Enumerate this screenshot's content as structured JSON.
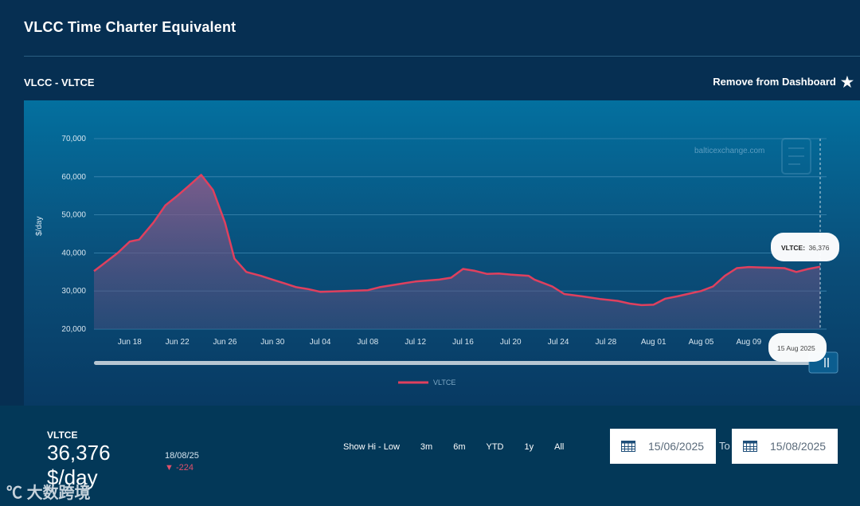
{
  "page": {
    "title": "VLCC Time Charter Equivalent",
    "subtitle": "VLCC - VLTCE",
    "remove_label": "Remove from Dashboard"
  },
  "chart_data": {
    "type": "area",
    "ylabel": "$/day",
    "ylim": [
      20000,
      70000
    ],
    "y_ticks": [
      {
        "value": 20000,
        "label": "20,000"
      },
      {
        "value": 30000,
        "label": "30,000"
      },
      {
        "value": 40000,
        "label": "40,000"
      },
      {
        "value": 50000,
        "label": "50,000"
      },
      {
        "value": 60000,
        "label": "60,000"
      },
      {
        "value": 70000,
        "label": "70,000"
      }
    ],
    "x_ticks": [
      {
        "day": 3,
        "label": "Jun 18"
      },
      {
        "day": 7,
        "label": "Jun 22"
      },
      {
        "day": 11,
        "label": "Jun 26"
      },
      {
        "day": 15,
        "label": "Jun 30"
      },
      {
        "day": 19,
        "label": "Jul 04"
      },
      {
        "day": 23,
        "label": "Jul 08"
      },
      {
        "day": 27,
        "label": "Jul 12"
      },
      {
        "day": 31,
        "label": "Jul 16"
      },
      {
        "day": 35,
        "label": "Jul 20"
      },
      {
        "day": 39,
        "label": "Jul 24"
      },
      {
        "day": 43,
        "label": "Jul 28"
      },
      {
        "day": 47,
        "label": "Aug 01"
      },
      {
        "day": 51,
        "label": "Aug 05"
      },
      {
        "day": 55,
        "label": "Aug 09"
      }
    ],
    "x_range": [
      0,
      61
    ],
    "series": [
      {
        "name": "VLTCE",
        "color": "#e0405e",
        "points": [
          [
            0,
            35200
          ],
          [
            2,
            40000
          ],
          [
            3,
            43000
          ],
          [
            3.8,
            43500
          ],
          [
            5,
            48000
          ],
          [
            6,
            52500
          ],
          [
            7,
            55000
          ],
          [
            8,
            57700
          ],
          [
            9,
            60500
          ],
          [
            10,
            56500
          ],
          [
            11,
            48000
          ],
          [
            11.8,
            38500
          ],
          [
            12.8,
            35000
          ],
          [
            14,
            34000
          ],
          [
            15,
            33000
          ],
          [
            16,
            32000
          ],
          [
            17,
            31000
          ],
          [
            18,
            30500
          ],
          [
            19,
            29800
          ],
          [
            21,
            30000
          ],
          [
            23,
            30200
          ],
          [
            24,
            31000
          ],
          [
            26,
            32000
          ],
          [
            27,
            32500
          ],
          [
            29,
            33000
          ],
          [
            30,
            33500
          ],
          [
            31,
            35800
          ],
          [
            32,
            35300
          ],
          [
            33,
            34500
          ],
          [
            34,
            34600
          ],
          [
            35,
            34300
          ],
          [
            36.5,
            34000
          ],
          [
            37,
            33000
          ],
          [
            38.5,
            31200
          ],
          [
            39.5,
            29200
          ],
          [
            41,
            28600
          ],
          [
            42.5,
            27900
          ],
          [
            44,
            27400
          ],
          [
            45,
            26700
          ],
          [
            46,
            26300
          ],
          [
            47,
            26400
          ],
          [
            48,
            28000
          ],
          [
            49,
            28600
          ],
          [
            50,
            29300
          ],
          [
            51,
            30000
          ],
          [
            52,
            31200
          ],
          [
            53,
            34000
          ],
          [
            54,
            36000
          ],
          [
            55,
            36300
          ],
          [
            56,
            36200
          ],
          [
            57,
            36100
          ],
          [
            58,
            36000
          ],
          [
            59,
            35000
          ],
          [
            60,
            35800
          ],
          [
            61,
            36376
          ]
        ]
      }
    ],
    "watermark": "balticexchange.com",
    "tooltip": {
      "label": "VLTCE:",
      "value": "36,376",
      "date": "15 Aug 2025"
    }
  },
  "summary": {
    "series_name": "VLTCE",
    "value": "36,376",
    "unit": "$/day",
    "change_date": "18/08/25",
    "change_value": "-224",
    "change_color": "#e0506a",
    "range_buttons": [
      "Show Hi - Low",
      "3m",
      "6m",
      "YTD",
      "1y",
      "All"
    ],
    "date_from": "15/06/2025",
    "date_to": "15/08/2025",
    "to_label": "To"
  },
  "corner_brand": "大数跨境"
}
